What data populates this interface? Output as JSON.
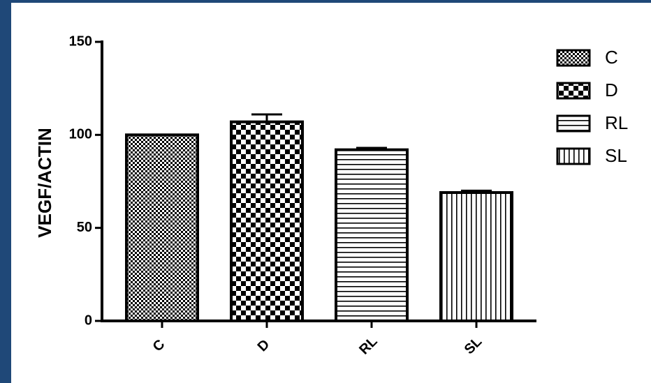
{
  "chart_data": {
    "type": "bar",
    "title": "",
    "xlabel": "",
    "ylabel": "VEGF/ACTIN",
    "ylim": [
      0,
      150
    ],
    "yticks": [
      0,
      50,
      100,
      150
    ],
    "categories": [
      "C",
      "D",
      "RL",
      "SL"
    ],
    "values": [
      100,
      107,
      92,
      69
    ],
    "errors": [
      0,
      4,
      1,
      1
    ],
    "patterns": [
      "fine-check",
      "coarse-check",
      "horizontal-lines",
      "vertical-lines"
    ],
    "legend": {
      "placement": "top-right",
      "entries": [
        "C",
        "D",
        "RL",
        "SL"
      ]
    },
    "grid": false
  },
  "colors": {
    "background_border": "#1f4878",
    "plot_background": "#ffffff",
    "ink": "#000000"
  }
}
